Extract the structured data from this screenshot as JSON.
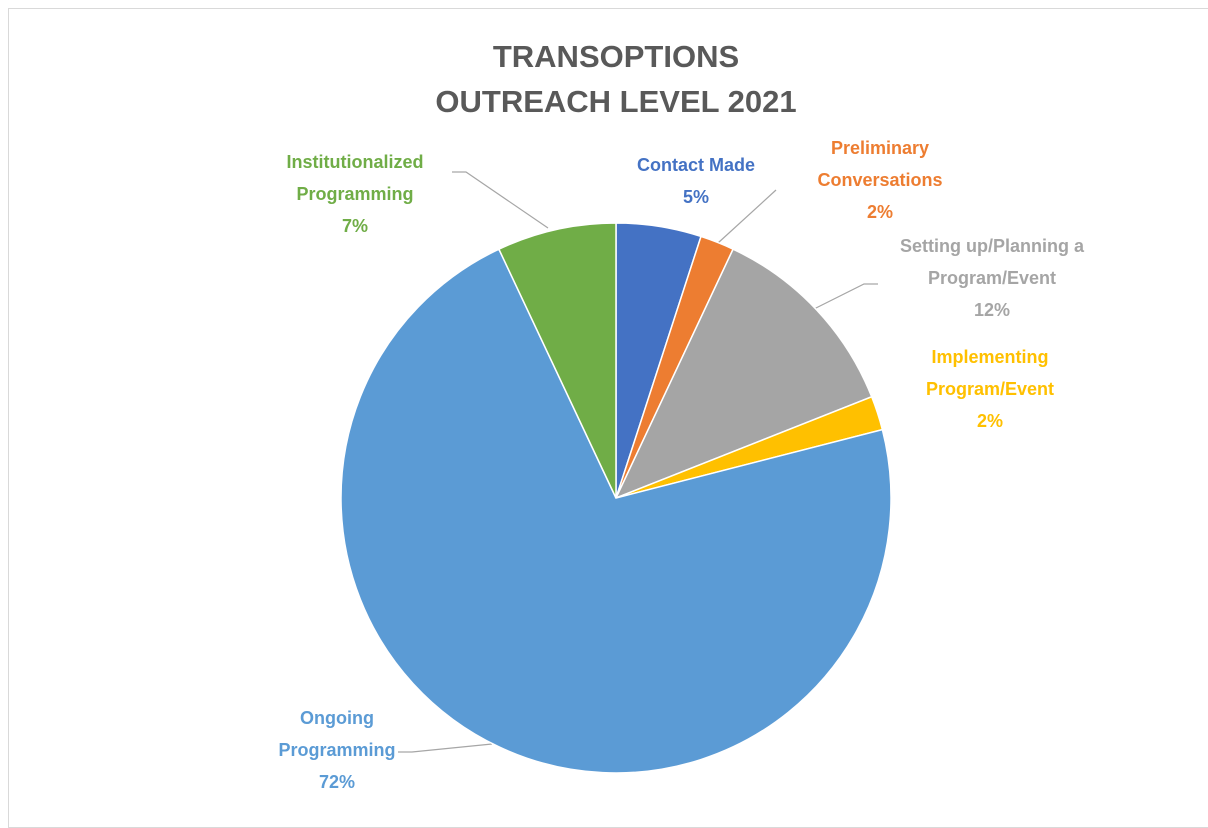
{
  "chart_data": {
    "type": "pie",
    "title": "TRANSOPTIONS OUTREACH LEVEL 2021",
    "categories": [
      "Contact Made",
      "Preliminary Conversations",
      "Setting up/Planning a Program/Event",
      "Implementing Program/Event",
      "Ongoing Programming",
      "Institutionalized Programming"
    ],
    "values": [
      5,
      2,
      12,
      2,
      72,
      7
    ],
    "value_labels": [
      "5%",
      "2%",
      "12%",
      "2%",
      "72%",
      "7%"
    ],
    "colors": [
      "#4472c4",
      "#ed7d31",
      "#a5a5a5",
      "#ffc000",
      "#5b9bd5",
      "#70ad47"
    ]
  }
}
